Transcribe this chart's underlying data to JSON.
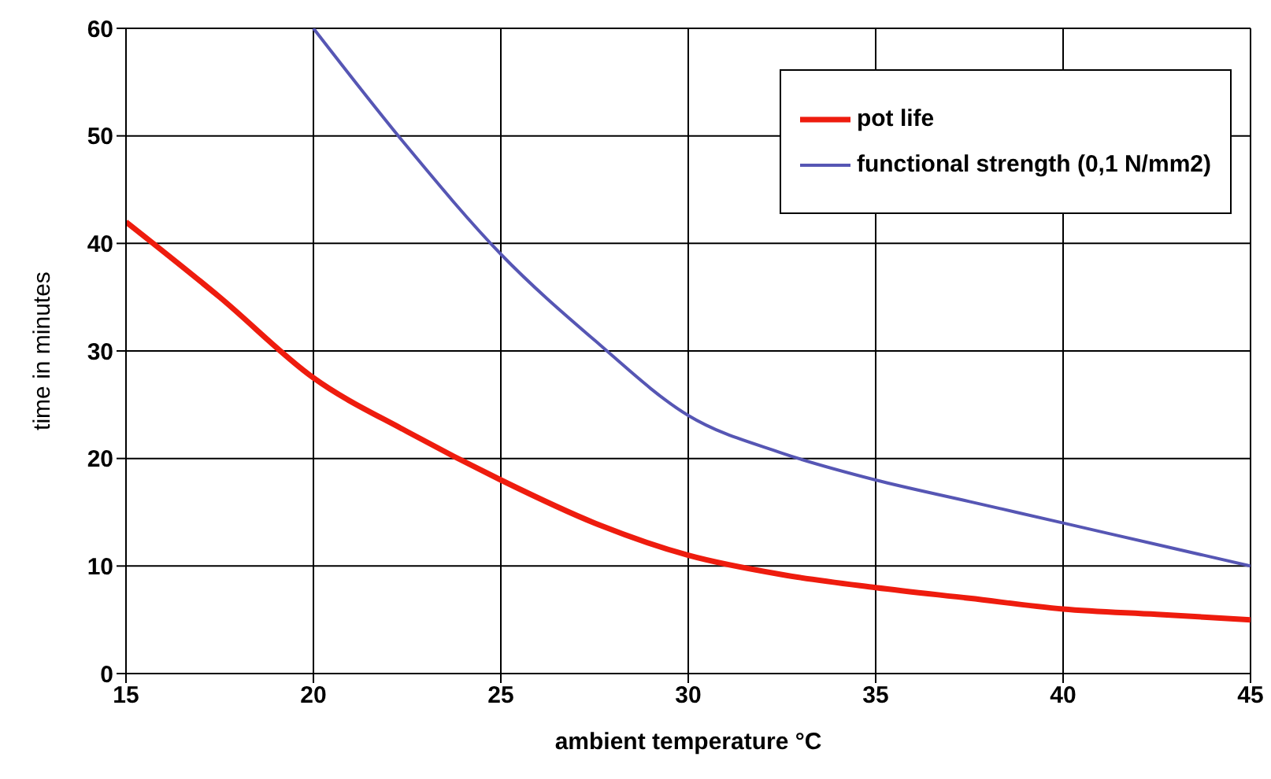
{
  "chart_data": {
    "type": "line",
    "xlabel": "ambient temperature  °C",
    "ylabel": "time in minutes",
    "xlim": [
      15,
      45
    ],
    "xticks": [
      15,
      20,
      25,
      30,
      35,
      40,
      45
    ],
    "ylim": [
      0,
      60
    ],
    "yticks": [
      0,
      10,
      20,
      30,
      40,
      50,
      60
    ],
    "grid": true,
    "legend": "top right",
    "marker": "none",
    "series": [
      {
        "name": "pot life",
        "color": "#ee1c0e",
        "x": [
          15,
          17.5,
          20,
          22.5,
          25,
          27.5,
          30,
          32.5,
          35,
          37.5,
          40,
          42.5,
          45
        ],
        "values": [
          42,
          35,
          27.5,
          22.5,
          18,
          14,
          11,
          9.2,
          8,
          7,
          6,
          5.5,
          5
        ]
      },
      {
        "name": "functional strength (0,1 N/mm2)",
        "color": "#5656b4",
        "x": [
          20,
          22.5,
          25,
          27.5,
          30,
          32.5,
          35,
          37.5,
          40,
          42.5,
          45
        ],
        "values": [
          60,
          49,
          39,
          31,
          24,
          20.5,
          18,
          16,
          14,
          12,
          10
        ]
      }
    ]
  }
}
